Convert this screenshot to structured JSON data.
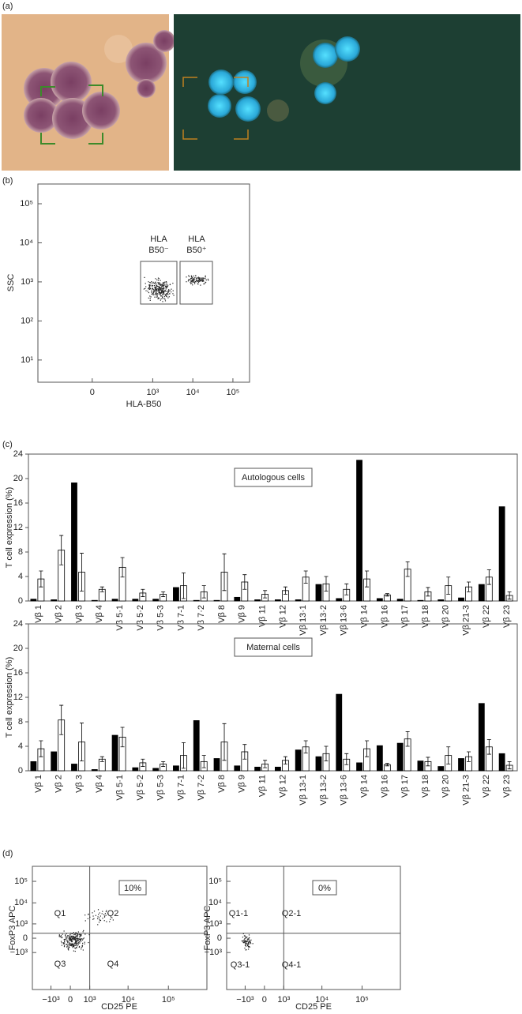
{
  "panel_labels": [
    "(a)",
    "(b)",
    "(c)",
    "(d)"
  ],
  "chart_data": [
    {
      "type": "flow",
      "xlabel": "HLA-B50",
      "ylabel": "SSC",
      "xscale": "asinh",
      "yscale": "log",
      "xlim": [
        -700,
        260000
      ],
      "ylim": [
        2.7,
        320000
      ],
      "xticks": [
        0,
        {
          "value": 1000,
          "label": "10³"
        },
        {
          "value": 10000,
          "label": "10⁴"
        },
        {
          "value": 100000,
          "label": "10⁵"
        }
      ],
      "yticks": [
        {
          "value": 10,
          "label": "10¹"
        },
        {
          "value": 100,
          "label": "10²"
        },
        {
          "value": 1000,
          "label": "10³"
        },
        {
          "value": 10000,
          "label": "10⁴"
        },
        {
          "value": 100000,
          "label": "10⁵"
        }
      ],
      "annotations": [
        "HLA",
        "B50⁻",
        "HLA",
        "B50⁺"
      ]
    },
    {
      "type": "bar",
      "ylabel": "T cell expression (%)",
      "annotation": "Autologous cells",
      "categories": [
        "Vβ 1",
        "Vβ 2",
        "Vβ 3",
        "Vβ 4",
        "Vβ 5·1",
        "Vβ 5·2",
        "Vβ 5-3",
        "Vβ 7-1",
        "Vβ 7·2",
        "Vβ 8",
        "Vβ 9",
        "Vβ 11",
        "Vβ 12",
        "Vβ 13·1",
        "Vβ 13·2",
        "Vβ 13·6",
        "Vβ 14",
        "Vβ 16",
        "Vβ 17",
        "Vβ 18",
        "Vβ 20",
        "Vβ 21-3",
        "Vβ 22",
        "Vβ 23"
      ],
      "series": [
        {
          "color": "#000000",
          "values": [
            0.3,
            0.2,
            19.3,
            0.1,
            0.3,
            0.3,
            0.3,
            2.2,
            0.1,
            0.1,
            0.6,
            0.2,
            0.2,
            0.2,
            2.7,
            0.4,
            23,
            0.4,
            0.3,
            0.1,
            0.2,
            0.5,
            2.7,
            15.4
          ]
        },
        {
          "color": "#ffffff",
          "values": [
            3.6,
            8.3,
            4.7,
            1.9,
            5.5,
            1.3,
            1.1,
            2.5,
            1.5,
            4.7,
            3.1,
            1.1,
            1.7,
            3.9,
            2.8,
            1.9,
            3.6,
            1.0,
            5.2,
            1.5,
            2.5,
            2.3,
            3.9,
            0.9
          ],
          "errors": [
            1.3,
            2.4,
            3.1,
            0.4,
            1.6,
            0.6,
            0.4,
            2.1,
            1.0,
            3.0,
            1.2,
            0.6,
            0.6,
            1.0,
            1.2,
            0.9,
            1.3,
            0.2,
            1.2,
            0.7,
            1.4,
            0.8,
            1.2,
            0.6
          ]
        }
      ],
      "ylim": [
        0,
        24
      ],
      "yticks": [
        0,
        4,
        8,
        12,
        16,
        20,
        24
      ]
    },
    {
      "type": "bar",
      "ylabel": "T cell expression (%)",
      "annotation": "Maternal cells",
      "categories": [
        "Vβ 1",
        "Vβ 2",
        "Vβ 3",
        "Vβ 4",
        "Vβ 5·1",
        "Vβ 5·2",
        "Vβ 5-3",
        "Vβ 7-1",
        "Vβ 7-2",
        "Vβ 8",
        "Vβ 9",
        "Vβ 11",
        "Vβ 12",
        "Vβ 13-1",
        "Vβ 13-2",
        "Vβ 13·6",
        "Vβ 14",
        "Vβ 16",
        "Vβ 17",
        "Vβ 18",
        "Vβ 20",
        "Vβ 21-3",
        "Vβ 22",
        "Vβ 23"
      ],
      "series": [
        {
          "color": "#000000",
          "values": [
            1.5,
            3.1,
            1.1,
            0.2,
            5.8,
            0.5,
            0.4,
            0.8,
            8.2,
            2.0,
            0.8,
            0.6,
            0.6,
            3.4,
            2.3,
            12.5,
            1.3,
            4.1,
            4.5,
            1.6,
            0.7,
            2.0,
            11.0,
            2.8
          ]
        },
        {
          "color": "#ffffff",
          "values": [
            3.6,
            8.3,
            4.7,
            1.9,
            5.5,
            1.3,
            1.1,
            2.5,
            1.5,
            4.7,
            3.1,
            1.1,
            1.7,
            3.9,
            2.8,
            1.9,
            3.6,
            1.0,
            5.2,
            1.5,
            2.5,
            2.3,
            3.9,
            0.9
          ],
          "errors": [
            1.3,
            2.4,
            3.1,
            0.4,
            1.6,
            0.6,
            0.4,
            2.1,
            1.0,
            3.0,
            1.2,
            0.6,
            0.6,
            1.0,
            1.2,
            0.9,
            1.3,
            0.2,
            1.2,
            0.7,
            1.4,
            0.8,
            1.2,
            0.6
          ]
        }
      ],
      "ylim": [
        0,
        24
      ],
      "yticks": [
        0,
        4,
        8,
        12,
        16,
        20,
        24
      ]
    },
    {
      "type": "flow",
      "xlabel": "CD25 PE",
      "ylabel": "FoxP3 APC",
      "xscale": "asinh",
      "yscale": "asinh",
      "xlim": [
        -3200,
        900000
      ],
      "ylim": [
        -55000,
        500000
      ],
      "xticks": [
        {
          "value": -1000,
          "label": "−10³"
        },
        0,
        {
          "value": 1000,
          "label": "10³"
        },
        {
          "value": 10000,
          "label": "10⁴"
        },
        {
          "value": 100000,
          "label": "10⁵"
        }
      ],
      "yticks": [
        {
          "value": -1000,
          "label": "−10³"
        },
        0,
        {
          "value": 1000,
          "label": "10³"
        },
        {
          "value": 10000,
          "label": "10⁴"
        },
        {
          "value": 100000,
          "label": "10⁵"
        }
      ],
      "quadrant": [
        1000,
        250
      ],
      "annotations": [
        "Q1",
        "Q2",
        "Q3",
        "Q4"
      ],
      "boxed_annotation": "10%"
    },
    {
      "type": "flow",
      "xlabel": "CD25 PE",
      "ylabel": "FoxP3 APC",
      "xscale": "asinh",
      "yscale": "asinh",
      "xlim": [
        -3200,
        900000
      ],
      "ylim": [
        -55000,
        500000
      ],
      "xticks": [
        {
          "value": -1000,
          "label": "−10³"
        },
        0,
        {
          "value": 1000,
          "label": "10³"
        },
        {
          "value": 10000,
          "label": "10⁴"
        },
        {
          "value": 100000,
          "label": "10⁵"
        }
      ],
      "yticks": [
        {
          "value": -1000,
          "label": "−10³"
        },
        0,
        {
          "value": 1000,
          "label": "10³"
        },
        {
          "value": 10000,
          "label": "10⁴"
        },
        {
          "value": 100000,
          "label": "10⁵"
        }
      ],
      "quadrant": [
        1000,
        250
      ],
      "annotations": [
        "Q1-1",
        "Q2-1",
        "Q3-1",
        "Q4-1"
      ],
      "boxed_annotation": "0%"
    }
  ]
}
